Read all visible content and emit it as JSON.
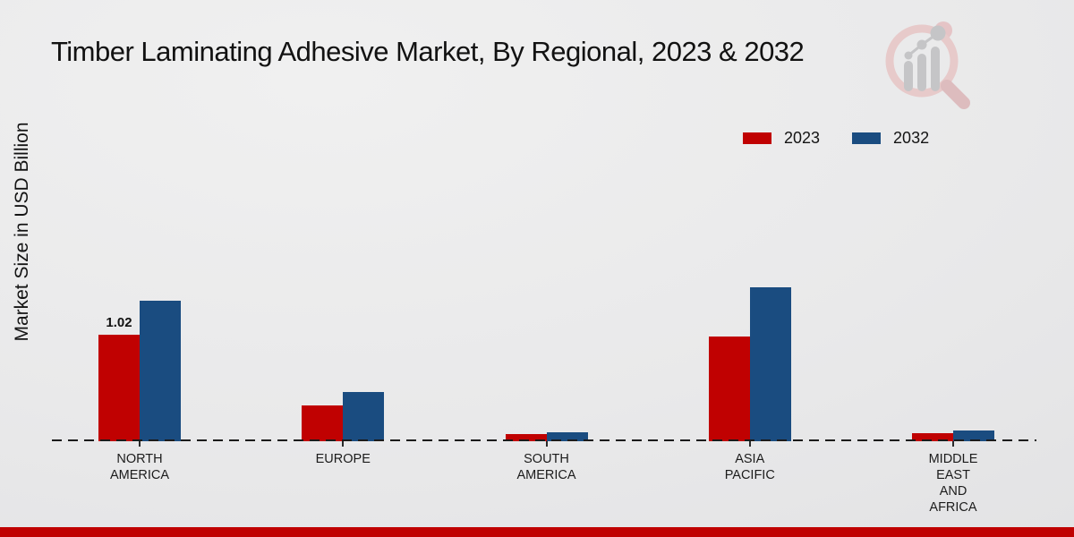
{
  "title": "Timber Laminating Adhesive Market, By Regional, 2023 & 2032",
  "y_axis_label": "Market Size in USD Billion",
  "legend": {
    "items": [
      {
        "label": "2023",
        "color": "#c00101"
      },
      {
        "label": "2032",
        "color": "#1a4c80"
      }
    ]
  },
  "footer": {
    "bar_color": "#c00101"
  },
  "logo": {
    "name": "market-research-magnifier-logo",
    "ring_color": "#e7caca",
    "handle_color": "#ddbcbe",
    "glyph_color": "#c5c5c7"
  },
  "chart_data": {
    "type": "bar",
    "title": "Timber Laminating Adhesive Market, By Regional, 2023 & 2032",
    "xlabel": "",
    "ylabel": "Market Size in USD Billion",
    "categories": [
      "NORTH\nAMERICA",
      "EUROPE",
      "SOUTH\nAMERICA",
      "ASIA\nPACIFIC",
      "MIDDLE\nEAST\nAND\nAFRICA"
    ],
    "series": [
      {
        "name": "2023",
        "color": "#c00101",
        "values": [
          1.02,
          0.34,
          0.07,
          1.01,
          0.08
        ]
      },
      {
        "name": "2032",
        "color": "#1a4c80",
        "values": [
          1.35,
          0.47,
          0.09,
          1.48,
          0.1
        ]
      }
    ],
    "data_labels": [
      {
        "series_index": 0,
        "category_index": 0,
        "text": "1.02"
      }
    ],
    "ylim": [
      0,
      1.55
    ],
    "grid": false,
    "y_axis_ticks_visible": false,
    "legend_position": "top-right",
    "baseline_style": "dashed"
  }
}
